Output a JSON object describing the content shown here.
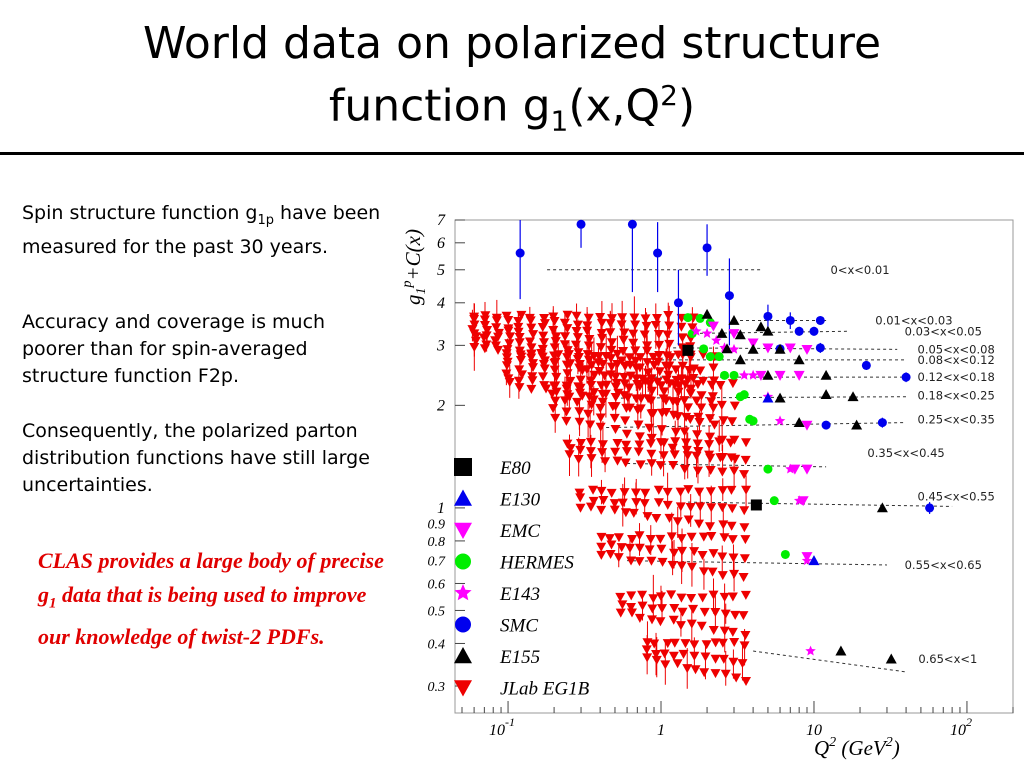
{
  "slide": {
    "title_line1": "World data on polarized structure",
    "title_line2_pre": "function g",
    "title_line2_sub": "1",
    "title_line2_mid": "(x,Q",
    "title_line2_sup": "2",
    "title_line2_post": ")",
    "para1_pre": "Spin structure function g",
    "para1_sub": "1p",
    "para1_post": " have been measured for the past 30 years.",
    "para2": "Accuracy and coverage is much poorer than for spin-averaged structure function F2p.",
    "para3": "Consequently, the polarized parton distribution functions have still large uncertainties.",
    "clas_pre": "CLAS provides a large body of precise g",
    "clas_sub": "1",
    "clas_post": " data that is being used to improve our knowledge of twist-2 PDFs."
  },
  "chart_data": {
    "type": "scatter",
    "xlabel": "Q",
    "xlabel_sup": "2",
    "xlabel_unit": " (GeV",
    "xlabel_unit_sup": "2",
    "xlabel_close": ")",
    "ylabel_pre": "g",
    "ylabel_sub": "1",
    "ylabel_sup": "p",
    "ylabel_post": "+C(x)",
    "x_scale": "log",
    "y_scale": "log",
    "xlim": [
      0.045,
      200
    ],
    "ylim": [
      0.25,
      7
    ],
    "x_tick_labels": [
      {
        "value": 0.1,
        "base": "10",
        "exp": "-1"
      },
      {
        "value": 1,
        "base": "1",
        "exp": ""
      },
      {
        "value": 10,
        "base": "10",
        "exp": ""
      },
      {
        "value": 100,
        "base": "10",
        "exp": "2"
      }
    ],
    "y_tick_labels": [
      {
        "value": 7,
        "text": "7"
      },
      {
        "value": 6,
        "text": "6"
      },
      {
        "value": 5,
        "text": "5"
      },
      {
        "value": 4,
        "text": "4"
      },
      {
        "value": 3,
        "text": "3"
      },
      {
        "value": 2,
        "text": "2"
      },
      {
        "value": 1,
        "text": "1"
      },
      {
        "value": 0.9,
        "text": "0.9"
      },
      {
        "value": 0.8,
        "text": "0.8"
      },
      {
        "value": 0.7,
        "text": "0.7"
      },
      {
        "value": 0.6,
        "text": "0.6"
      },
      {
        "value": 0.5,
        "text": "0.5"
      },
      {
        "value": 0.4,
        "text": "0.4"
      },
      {
        "value": 0.3,
        "text": "0.3"
      }
    ],
    "legend_placement": "bottom-left",
    "legend": [
      {
        "name": "E80",
        "marker": "square",
        "color": "#000000"
      },
      {
        "name": "E130",
        "marker": "triangle-up",
        "color": "#0000ee"
      },
      {
        "name": "EMC",
        "marker": "triangle-down",
        "color": "#ff00ff"
      },
      {
        "name": "HERMES",
        "marker": "circle",
        "color": "#00ee00"
      },
      {
        "name": "E143",
        "marker": "star",
        "color": "#ff00ff"
      },
      {
        "name": "SMC",
        "marker": "circle",
        "color": "#0000ee"
      },
      {
        "name": "E155",
        "marker": "triangle-up",
        "color": "#000000"
      },
      {
        "name": "JLab EG1B",
        "marker": "triangle-down",
        "color": "#ee0000"
      }
    ],
    "bins": [
      {
        "label": "0<x<0.01",
        "fit": [
          [
            0.18,
            5.0
          ],
          [
            4.5,
            5.0
          ]
        ],
        "label_at": [
          20,
          5.0
        ]
      },
      {
        "label": "0.01<x<0.03",
        "fit": [
          [
            3,
            3.55
          ],
          [
            12,
            3.55
          ]
        ],
        "label_at": [
          45,
          3.55
        ]
      },
      {
        "label": "0.03<x<0.05",
        "fit": [
          [
            1.5,
            3.25
          ],
          [
            17,
            3.3
          ]
        ],
        "label_at": [
          70,
          3.3
        ]
      },
      {
        "label": "0.05<x<0.08",
        "fit": [
          [
            1.2,
            2.95
          ],
          [
            35,
            2.92
          ]
        ],
        "label_at": [
          85,
          2.92
        ]
      },
      {
        "label": "0.08<x<0.12",
        "fit": [
          [
            1.0,
            2.72
          ],
          [
            40,
            2.72
          ]
        ],
        "label_at": [
          85,
          2.72
        ]
      },
      {
        "label": "0.12<x<0.18",
        "fit": [
          [
            0.9,
            2.42
          ],
          [
            40,
            2.42
          ]
        ],
        "label_at": [
          85,
          2.42
        ]
      },
      {
        "label": "0.18<x<0.25",
        "fit": [
          [
            0.5,
            2.1
          ],
          [
            40,
            2.12
          ]
        ],
        "label_at": [
          85,
          2.14
        ]
      },
      {
        "label": "0.25<x<0.35",
        "fit": [
          [
            0.4,
            1.72
          ],
          [
            40,
            1.78
          ]
        ],
        "label_at": [
          85,
          1.82
        ]
      },
      {
        "label": "0.35<x<0.45",
        "fit": [
          [
            0.6,
            1.35
          ],
          [
            12,
            1.32
          ]
        ],
        "label_at": [
          40,
          1.45
        ]
      },
      {
        "label": "0.45<x<0.55",
        "fit": [
          [
            1.5,
            1.04
          ],
          [
            80,
            1.01
          ]
        ],
        "label_at": [
          85,
          1.08
        ]
      },
      {
        "label": "0.55<x<0.65",
        "fit": [
          [
            0.6,
            0.7
          ],
          [
            30,
            0.68
          ]
        ],
        "label_at": [
          70,
          0.68
        ]
      },
      {
        "label": "0.65<x<1",
        "fit": [
          [
            4,
            0.38
          ],
          [
            40,
            0.33
          ]
        ],
        "label_at": [
          75,
          0.36
        ]
      }
    ],
    "series": [
      {
        "name": "SMC",
        "marker": "circle",
        "color": "#0000ee",
        "points": [
          [
            0.12,
            5.6,
            1.5
          ],
          [
            0.3,
            6.8,
            1.0
          ],
          [
            0.65,
            6.8,
            2.5
          ],
          [
            0.95,
            5.6,
            1.3
          ],
          [
            1.3,
            4.0,
            1.0
          ],
          [
            2.0,
            5.8,
            1.0
          ],
          [
            2.8,
            4.2,
            1.2
          ],
          [
            5,
            3.65,
            0.3
          ],
          [
            7,
            3.55,
            0.2
          ],
          [
            11,
            3.55,
            0.1
          ],
          [
            8,
            3.3,
            0.1
          ],
          [
            10,
            3.3,
            0.1
          ],
          [
            6,
            2.93,
            0.08
          ],
          [
            11,
            2.95,
            0.1
          ],
          [
            22,
            2.62,
            0.08
          ],
          [
            40,
            2.42,
            0.08
          ],
          [
            28,
            1.78,
            0.06
          ],
          [
            12,
            1.75,
            0.05
          ],
          [
            57,
            1.0,
            0.04
          ]
        ]
      },
      {
        "name": "HERMES",
        "marker": "circle",
        "color": "#00ee00",
        "points": [
          [
            1.5,
            3.62
          ],
          [
            1.8,
            3.6
          ],
          [
            2.1,
            3.5
          ],
          [
            1.6,
            3.25
          ],
          [
            1.9,
            2.93
          ],
          [
            2.4,
            2.78
          ],
          [
            2.1,
            2.78
          ],
          [
            2.6,
            2.45
          ],
          [
            3.0,
            2.45
          ],
          [
            3.3,
            2.12
          ],
          [
            3.5,
            2.15
          ],
          [
            3.8,
            1.82
          ],
          [
            4.0,
            1.8
          ],
          [
            5.0,
            1.3
          ],
          [
            5.5,
            1.05
          ],
          [
            6.5,
            0.73
          ]
        ]
      },
      {
        "name": "EMC",
        "marker": "triangle-down",
        "color": "#ff00ff",
        "points": [
          [
            2.2,
            3.42
          ],
          [
            3.0,
            3.25
          ],
          [
            4.0,
            3.05
          ],
          [
            5.0,
            2.95
          ],
          [
            7.0,
            2.95
          ],
          [
            9.0,
            2.92
          ],
          [
            4.5,
            2.45
          ],
          [
            6.0,
            2.45
          ],
          [
            8.0,
            2.45
          ],
          [
            9.0,
            1.75
          ],
          [
            7.5,
            1.3
          ],
          [
            9.0,
            1.3
          ],
          [
            8.5,
            1.05
          ],
          [
            9.0,
            0.72
          ]
        ]
      },
      {
        "name": "E143",
        "marker": "star",
        "color": "#ff00ff",
        "points": [
          [
            1.7,
            3.3
          ],
          [
            2.0,
            3.25
          ],
          [
            2.3,
            3.1
          ],
          [
            2.6,
            2.95
          ],
          [
            3.0,
            2.92
          ],
          [
            3.5,
            2.45
          ],
          [
            4.0,
            2.45
          ],
          [
            5.0,
            2.12
          ],
          [
            6.0,
            1.8
          ],
          [
            7.0,
            1.3
          ],
          [
            8.0,
            1.05
          ],
          [
            9.0,
            0.7
          ],
          [
            9.5,
            0.38
          ]
        ]
      },
      {
        "name": "E155",
        "marker": "triangle-up",
        "color": "#000000",
        "points": [
          [
            2.0,
            3.7
          ],
          [
            3.0,
            3.55
          ],
          [
            4.5,
            3.4
          ],
          [
            2.5,
            3.25
          ],
          [
            3.3,
            3.22
          ],
          [
            5.0,
            3.3
          ],
          [
            2.7,
            2.93
          ],
          [
            4.0,
            2.92
          ],
          [
            6.0,
            2.92
          ],
          [
            3.3,
            2.72
          ],
          [
            8.0,
            2.72
          ],
          [
            5.0,
            2.45
          ],
          [
            12,
            2.45
          ],
          [
            6.0,
            2.1
          ],
          [
            12,
            2.15
          ],
          [
            18,
            2.12
          ],
          [
            8.0,
            1.78
          ],
          [
            19,
            1.75
          ],
          [
            28,
            1.0
          ],
          [
            15,
            0.38
          ],
          [
            32,
            0.36
          ]
        ]
      },
      {
        "name": "E130",
        "marker": "triangle-up",
        "color": "#0000ee",
        "points": [
          [
            5.0,
            2.1
          ],
          [
            10,
            0.7
          ]
        ]
      },
      {
        "name": "E80",
        "marker": "square",
        "color": "#000000",
        "points": [
          [
            1.5,
            2.9
          ],
          [
            4.2,
            1.02
          ]
        ]
      }
    ],
    "jlab_clusters": [
      {
        "q0": 0.06,
        "q1": 1.6,
        "ytop": 3.65,
        "ybot": 2.2,
        "cols": 20,
        "rows": 8
      },
      {
        "q0": 0.1,
        "q1": 2.2,
        "ytop": 2.8,
        "ybot": 1.75,
        "cols": 18,
        "rows": 6
      },
      {
        "q0": 0.2,
        "q1": 3.0,
        "ytop": 2.3,
        "ybot": 1.35,
        "cols": 16,
        "rows": 5
      },
      {
        "q0": 0.25,
        "q1": 3.5,
        "ytop": 1.55,
        "ybot": 1.25,
        "cols": 16,
        "rows": 3
      },
      {
        "q0": 0.3,
        "q1": 3.5,
        "ytop": 1.12,
        "ybot": 0.86,
        "cols": 16,
        "rows": 3
      },
      {
        "q0": 0.4,
        "q1": 3.5,
        "ytop": 0.82,
        "ybot": 0.62,
        "cols": 15,
        "rows": 3
      },
      {
        "q0": 0.55,
        "q1": 3.5,
        "ytop": 0.55,
        "ybot": 0.42,
        "cols": 13,
        "rows": 3
      },
      {
        "q0": 0.8,
        "q1": 3.5,
        "ytop": 0.4,
        "ybot": 0.31,
        "cols": 11,
        "rows": 3
      }
    ]
  }
}
